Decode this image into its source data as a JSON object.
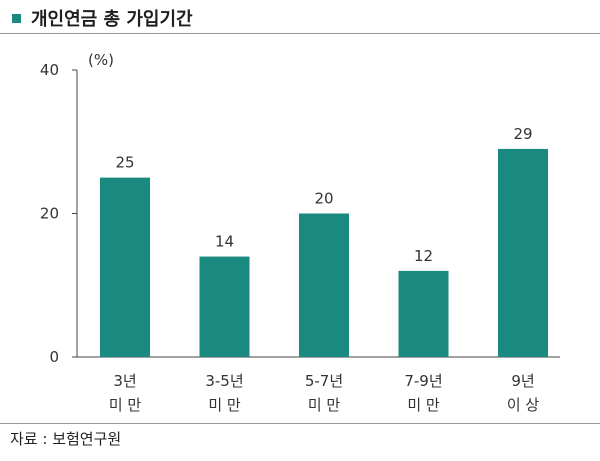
{
  "header": {
    "title": "개인연금 총 가입기간",
    "marker_color": "#1a8a80"
  },
  "source": "자료 : 보험연구원",
  "chart_data": {
    "type": "bar",
    "title": "개인연금 총 가입기간",
    "unit_label": "(%)",
    "categories": [
      [
        "3년",
        "미 만"
      ],
      [
        "3-5년",
        "미 만"
      ],
      [
        "5-7년",
        "미 만"
      ],
      [
        "7-9년",
        "미 만"
      ],
      [
        "9년",
        "이 상"
      ]
    ],
    "values": [
      25,
      14,
      20,
      12,
      29
    ],
    "ylim": [
      0,
      40
    ],
    "yticks": [
      0,
      20,
      40
    ],
    "grid": false,
    "legend": "none",
    "bar_color": "#1a8a80"
  }
}
